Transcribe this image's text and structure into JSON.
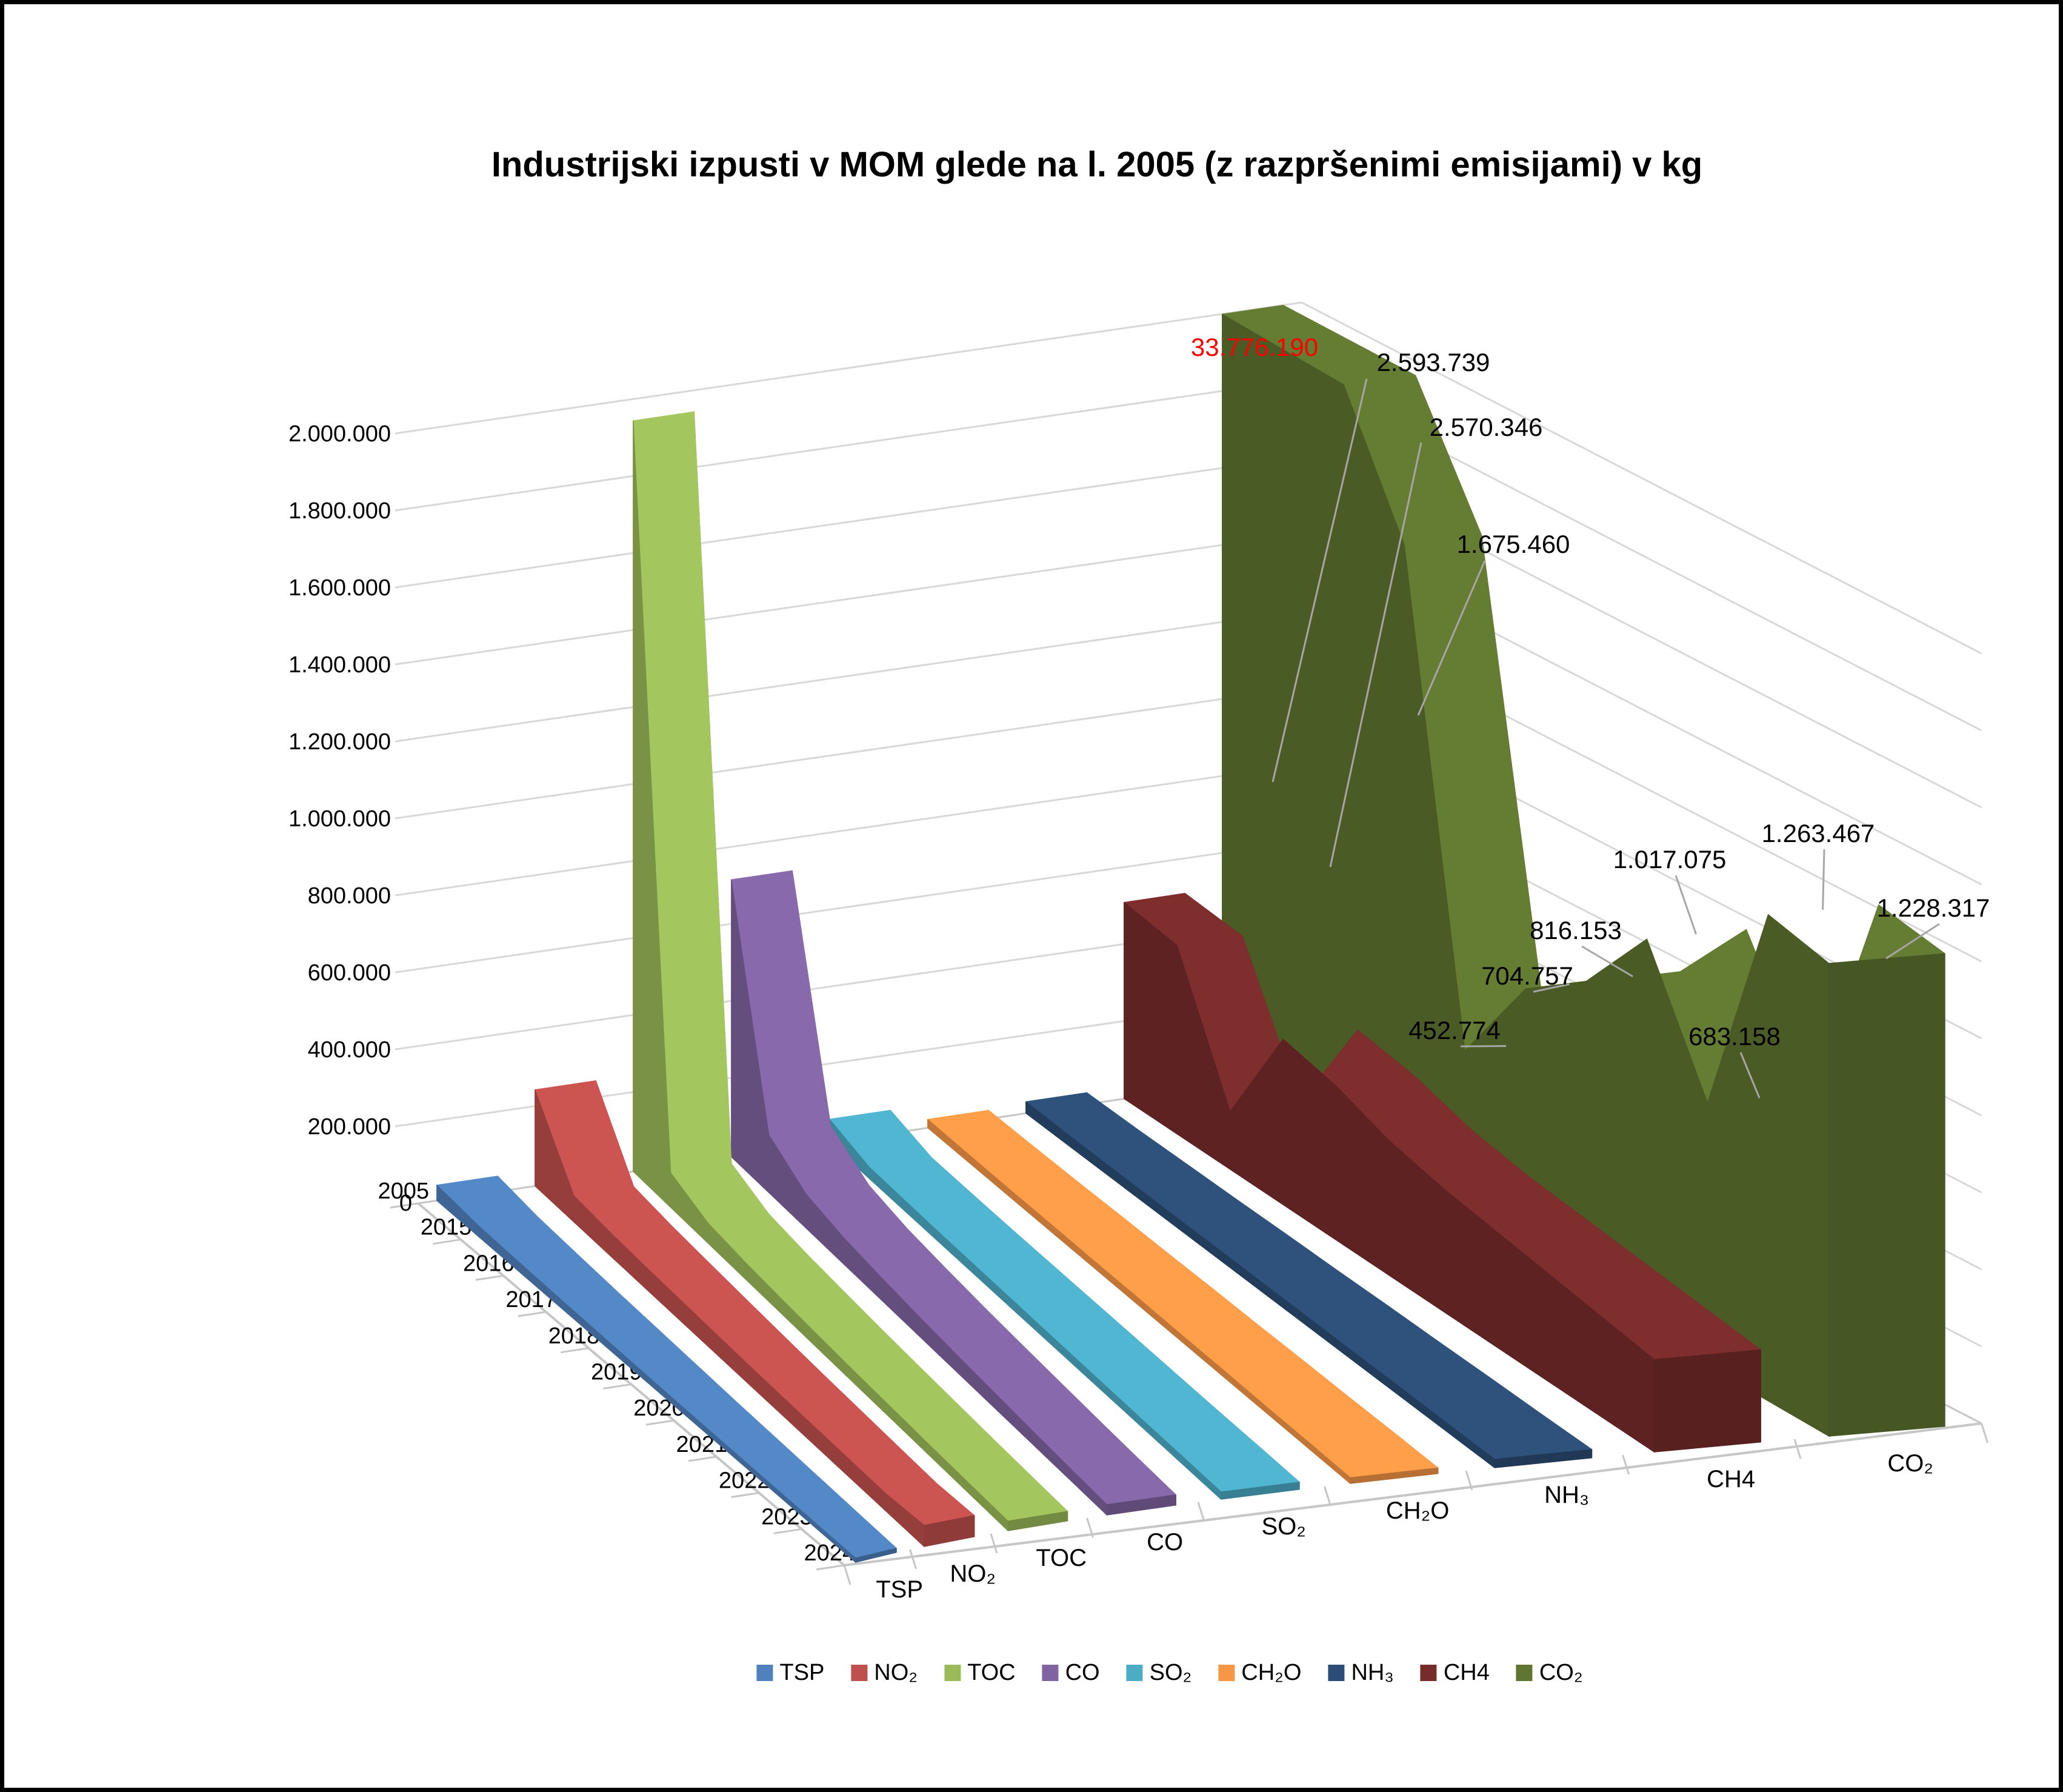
{
  "title": "Industrijski izpusti v MOM glede na l. 2005 (z razpršenimi emisijami) v kg",
  "chart_data": {
    "type": "area",
    "projection": "3d",
    "unit": "kg",
    "grid": true,
    "legend_position": "bottom",
    "value_axis": {
      "min": 0,
      "max": 2000000,
      "step": 200000,
      "tick_labels": [
        "0",
        "200.000",
        "400.000",
        "600.000",
        "800.000",
        "1.000.000",
        "1.200.000",
        "1.400.000",
        "1.600.000",
        "1.800.000",
        "2.000.000"
      ]
    },
    "depth_axis_years": [
      "2005",
      "2015",
      "2016",
      "2017",
      "2018",
      "2019",
      "2020",
      "2021",
      "2022",
      "2023",
      "2024"
    ],
    "series_axis_labels": [
      "TSP",
      "NO₂",
      "TOC",
      "CO",
      "SO₂",
      "CH₂O",
      "NH₃",
      "CH4",
      "CO₂"
    ],
    "series": [
      {
        "name": "TSP",
        "color": "#4F81BD",
        "values_estimated": true,
        "values": [
          40000,
          28000,
          24000,
          21000,
          19000,
          17000,
          15000,
          14000,
          13000,
          12000,
          11000
        ]
      },
      {
        "name": "NO₂",
        "color": "#C0504D",
        "values_estimated": true,
        "values": [
          250000,
          68000,
          60000,
          56000,
          53000,
          50000,
          48000,
          47000,
          46000,
          45000,
          55000
        ]
      },
      {
        "name": "TOC",
        "color": "#9BBB59",
        "values_estimated": true,
        "values": [
          1950000,
          90000,
          52000,
          43000,
          38000,
          34000,
          31000,
          29000,
          27000,
          26000,
          25000
        ]
      },
      {
        "name": "CO",
        "color": "#8064A2",
        "values_estimated": true,
        "values": [
          720000,
          150000,
          88000,
          68000,
          58000,
          50000,
          44000,
          39000,
          34000,
          30000,
          27000
        ]
      },
      {
        "name": "SO₂",
        "color": "#4BACC6",
        "values_estimated": true,
        "values": [
          60000,
          30000,
          27000,
          25000,
          24000,
          23000,
          22000,
          21000,
          20000,
          20000,
          19000
        ]
      },
      {
        "name": "CH₂O",
        "color": "#F79646",
        "values_estimated": true,
        "values": [
          22000,
          20000,
          19000,
          19000,
          18000,
          18000,
          17000,
          17000,
          16000,
          16000,
          15000
        ]
      },
      {
        "name": "NH₃",
        "color": "#2C4D75",
        "values_estimated": true,
        "values": [
          30000,
          27000,
          26000,
          25000,
          25000,
          24000,
          24000,
          23000,
          23000,
          22000,
          22000
        ]
      },
      {
        "name": "CH4",
        "color": "#772C2A",
        "values_estimated": true,
        "values": [
          510000,
          490000,
          150000,
          430000,
          400000,
          350000,
          320000,
          300000,
          280000,
          260000,
          240000
        ]
      },
      {
        "name": "CO₂",
        "color": "#5F7530",
        "values_estimated": false,
        "values": [
          33776190,
          2593739,
          2570346,
          1675460,
          452774,
          704757,
          816153,
          1017075,
          683158,
          1263467,
          1228317
        ]
      }
    ],
    "data_labels_co2": [
      {
        "year": "2005",
        "text": "33.776.190",
        "color": "#FF0000"
      },
      {
        "year": "2015",
        "text": "2.593.739",
        "color": "#000000"
      },
      {
        "year": "2016",
        "text": "2.570.346",
        "color": "#000000"
      },
      {
        "year": "2017",
        "text": "1.675.460",
        "color": "#000000"
      },
      {
        "year": "2018",
        "text": "452.774",
        "color": "#000000"
      },
      {
        "year": "2019",
        "text": "704.757",
        "color": "#000000"
      },
      {
        "year": "2020",
        "text": "816.153",
        "color": "#000000"
      },
      {
        "year": "2021",
        "text": "1.017.075",
        "color": "#000000"
      },
      {
        "year": "2022",
        "text": "683.158",
        "color": "#000000"
      },
      {
        "year": "2023",
        "text": "1.263.467",
        "color": "#000000"
      },
      {
        "year": "2024",
        "text": "1.228.317",
        "color": "#000000"
      }
    ],
    "legend_items": [
      "TSP",
      "NO₂",
      "TOC",
      "CO",
      "SO₂",
      "CH₂O",
      "NH₃",
      "CH4",
      "CO₂"
    ],
    "colors": {
      "gridline": "#D8D8D8",
      "axis_line": "#C6C6C6",
      "leader_line": "#A6A6A6",
      "text": "#000000",
      "highlight_label": "#FF0000",
      "background": "#FFFFFF",
      "border": "#000000"
    }
  }
}
